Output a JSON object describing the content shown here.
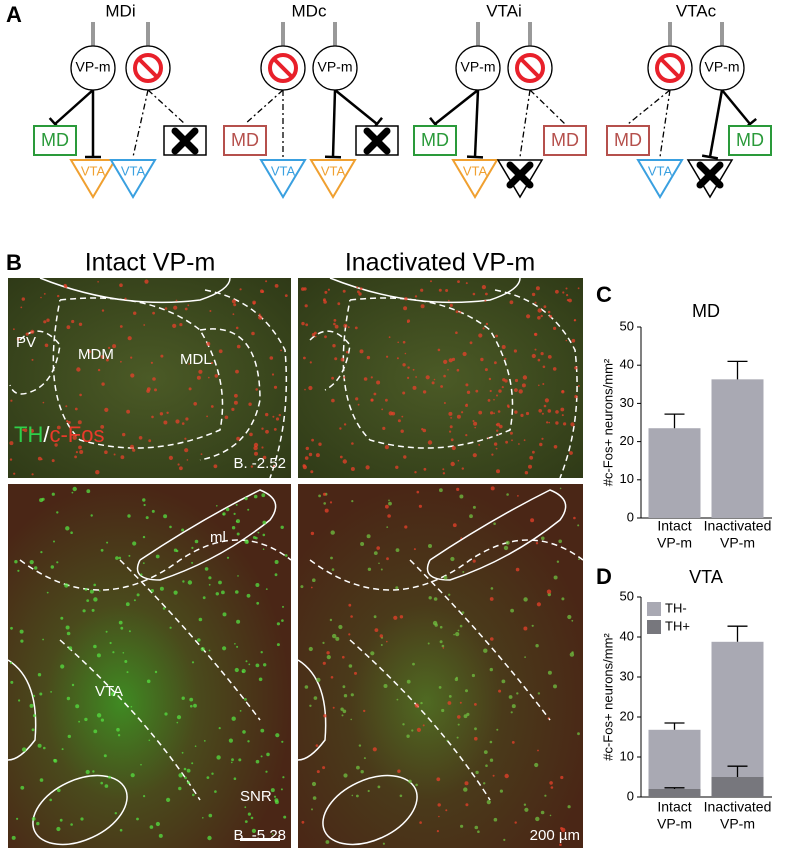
{
  "panel_a": {
    "label": "A",
    "diagrams": [
      {
        "title": "MDi",
        "node": "VP-m",
        "targets": [
          "MD",
          "VTA",
          "VTA"
        ]
      },
      {
        "title": "MDc",
        "node": "VP-m",
        "targets": [
          "MD",
          "VTA",
          "VTA"
        ]
      },
      {
        "title": "VTAi",
        "node": "VP-m",
        "targets": [
          "MD",
          "VTA",
          "MD"
        ]
      },
      {
        "title": "VTAc",
        "node": "VP-m",
        "targets": [
          "MD",
          "VTA",
          "MD"
        ]
      }
    ]
  },
  "panel_b": {
    "label": "B",
    "columns": [
      "Intact VP-m",
      "Inactivated VP-m"
    ],
    "top_row": {
      "regions": [
        "PV",
        "MDM",
        "MDL"
      ],
      "stain": [
        "TH",
        "/",
        "c-Fos"
      ],
      "bregma": "B. -2.52"
    },
    "bottom_row": {
      "regions": [
        "ml",
        "VTA",
        "SNR"
      ],
      "bregma": "B. -5.28",
      "scale_bar": "200 µm"
    }
  },
  "chart_data": [
    {
      "label": "C",
      "type": "bar",
      "title": "MD",
      "ylabel": "#c-Fos+ neurons/mm²",
      "categories": [
        [
          "Intact",
          "VP-m"
        ],
        [
          "Inactivated",
          "VP-m"
        ]
      ],
      "values": [
        23.5,
        36.3
      ],
      "errors": [
        3.7,
        4.7
      ],
      "color": "#a9a9b3",
      "ylim": [
        0,
        50
      ],
      "yticks": [
        0,
        10,
        20,
        30,
        40,
        50
      ]
    },
    {
      "label": "D",
      "type": "stacked_bar",
      "title": "VTA",
      "ylabel": "#c-Fos+ neurons/mm²",
      "categories": [
        [
          "Intact",
          "VP-m"
        ],
        [
          "Inactivated",
          "VP-m"
        ]
      ],
      "series": [
        {
          "name": "TH+",
          "color": "#77777d",
          "values": [
            2,
            5
          ],
          "errors": [
            0.3,
            2.7
          ]
        },
        {
          "name": "TH-",
          "color": "#a9a9b3",
          "values": [
            14.8,
            33.8
          ],
          "errors": [
            1.7,
            3.9
          ]
        }
      ],
      "ylim": [
        0,
        50
      ],
      "yticks": [
        0,
        10,
        20,
        30,
        40,
        50
      ],
      "legend": "upper left"
    }
  ]
}
